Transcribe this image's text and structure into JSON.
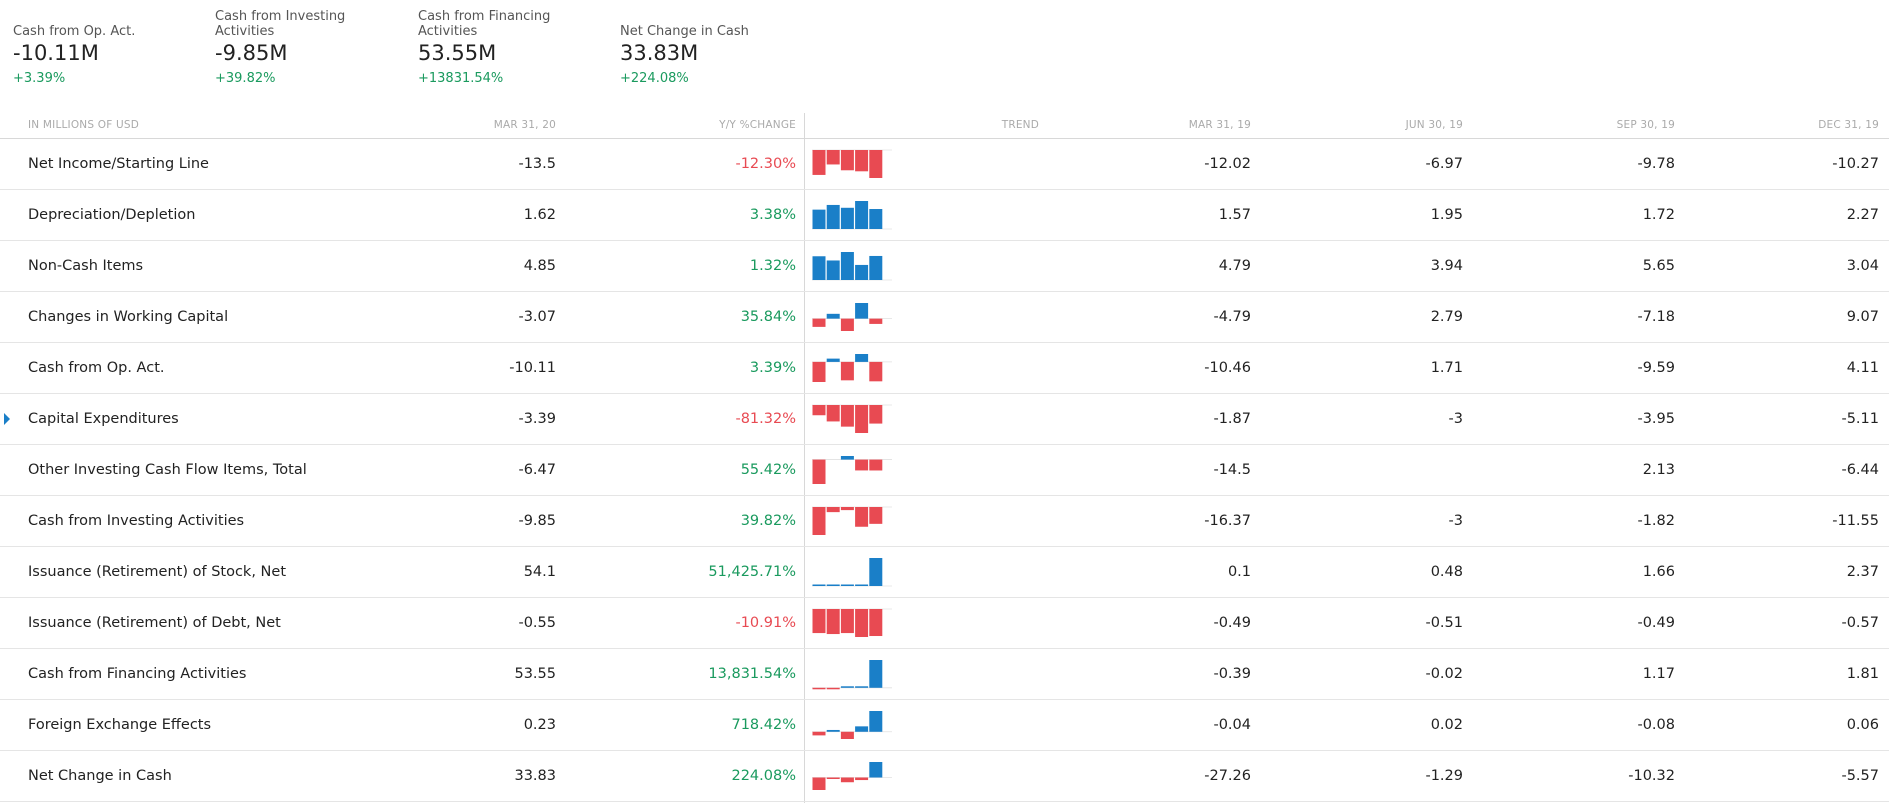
{
  "summary": [
    {
      "label": "Cash from Op. Act.",
      "value": "-10.11M",
      "change": "+3.39%"
    },
    {
      "label": "Cash from Investing Activities",
      "value": "-9.85M",
      "change": "+39.82%"
    },
    {
      "label": "Cash from Financing Activities",
      "value": "53.55M",
      "change": "+13831.54%"
    },
    {
      "label": "Net Change in Cash",
      "value": "33.83M",
      "change": "+224.08%"
    }
  ],
  "table": {
    "headers": {
      "label": "IN MILLIONS OF USD",
      "current": "MAR 31, 20",
      "yy": "Y/Y %CHANGE",
      "trend": "TREND",
      "q1": "MAR 31, 19",
      "q2": "JUN 30, 19",
      "q3": "SEP 30, 19",
      "q4": "DEC 31, 19"
    },
    "rows": [
      {
        "label": "Net Income/Starting Line",
        "current": "-13.5",
        "yy": "-12.30%",
        "yy_sign": "neg",
        "q1": "-12.02",
        "q2": "-6.97",
        "q3": "-9.78",
        "q4": "-10.27",
        "trend": [
          -12.02,
          -6.97,
          -9.78,
          -10.27,
          -13.5
        ]
      },
      {
        "label": "Depreciation/Depletion",
        "current": "1.62",
        "yy": "3.38%",
        "yy_sign": "pos",
        "q1": "1.57",
        "q2": "1.95",
        "q3": "1.72",
        "q4": "2.27",
        "trend": [
          1.57,
          1.95,
          1.72,
          2.27,
          1.62
        ]
      },
      {
        "label": "Non-Cash Items",
        "current": "4.85",
        "yy": "1.32%",
        "yy_sign": "pos",
        "q1": "4.79",
        "q2": "3.94",
        "q3": "5.65",
        "q4": "3.04",
        "trend": [
          4.79,
          3.94,
          5.65,
          3.04,
          4.85
        ]
      },
      {
        "label": "Changes in Working Capital",
        "current": "-3.07",
        "yy": "35.84%",
        "yy_sign": "pos",
        "q1": "-4.79",
        "q2": "2.79",
        "q3": "-7.18",
        "q4": "9.07",
        "trend": [
          -4.79,
          2.79,
          -7.18,
          9.07,
          -3.07
        ]
      },
      {
        "label": "Cash from Op. Act.",
        "current": "-10.11",
        "yy": "3.39%",
        "yy_sign": "pos",
        "q1": "-10.46",
        "q2": "1.71",
        "q3": "-9.59",
        "q4": "4.11",
        "trend": [
          -10.46,
          1.71,
          -9.59,
          4.11,
          -10.11
        ]
      },
      {
        "label": "Capital Expenditures",
        "current": "-3.39",
        "yy": "-81.32%",
        "yy_sign": "neg",
        "q1": "-1.87",
        "q2": "-3",
        "q3": "-3.95",
        "q4": "-5.11",
        "trend": [
          -1.87,
          -3,
          -3.95,
          -5.11,
          -3.39
        ],
        "expandable": true
      },
      {
        "label": "Other Investing Cash Flow Items, Total",
        "current": "-6.47",
        "yy": "55.42%",
        "yy_sign": "pos",
        "q1": "-14.5",
        "q2": "",
        "q3": "2.13",
        "q4": "-6.44",
        "trend": [
          -14.5,
          null,
          2.13,
          -6.44,
          -6.47
        ]
      },
      {
        "label": "Cash from Investing Activities",
        "current": "-9.85",
        "yy": "39.82%",
        "yy_sign": "pos",
        "q1": "-16.37",
        "q2": "-3",
        "q3": "-1.82",
        "q4": "-11.55",
        "trend": [
          -16.37,
          -3,
          -1.82,
          -11.55,
          -9.85
        ]
      },
      {
        "label": "Issuance (Retirement) of Stock, Net",
        "current": "54.1",
        "yy": "51,425.71%",
        "yy_sign": "pos",
        "q1": "0.1",
        "q2": "0.48",
        "q3": "1.66",
        "q4": "2.37",
        "trend": [
          0.1,
          0.48,
          1.66,
          2.37,
          54.1
        ]
      },
      {
        "label": "Issuance (Retirement) of Debt, Net",
        "current": "-0.55",
        "yy": "-10.91%",
        "yy_sign": "neg",
        "q1": "-0.49",
        "q2": "-0.51",
        "q3": "-0.49",
        "q4": "-0.57",
        "trend": [
          -0.49,
          -0.51,
          -0.49,
          -0.57,
          -0.55
        ]
      },
      {
        "label": "Cash from Financing Activities",
        "current": "53.55",
        "yy": "13,831.54%",
        "yy_sign": "pos",
        "q1": "-0.39",
        "q2": "-0.02",
        "q3": "1.17",
        "q4": "1.81",
        "trend": [
          -0.39,
          -0.02,
          1.17,
          1.81,
          53.55
        ]
      },
      {
        "label": "Foreign Exchange Effects",
        "current": "0.23",
        "yy": "718.42%",
        "yy_sign": "pos",
        "q1": "-0.04",
        "q2": "0.02",
        "q3": "-0.08",
        "q4": "0.06",
        "trend": [
          -0.04,
          0.02,
          -0.08,
          0.06,
          0.23
        ]
      },
      {
        "label": "Net Change in Cash",
        "current": "33.83",
        "yy": "224.08%",
        "yy_sign": "pos",
        "q1": "-27.26",
        "q2": "-1.29",
        "q3": "-10.32",
        "q4": "-5.57",
        "trend": [
          -27.26,
          -1.29,
          -10.32,
          -5.57,
          33.83
        ]
      }
    ]
  },
  "colors": {
    "positive": "#1a9a5e",
    "negative": "#e84a52",
    "bar_positive": "#1a7fc8",
    "bar_negative": "#e84a52",
    "expand_arrow": "#1a7fc8"
  }
}
